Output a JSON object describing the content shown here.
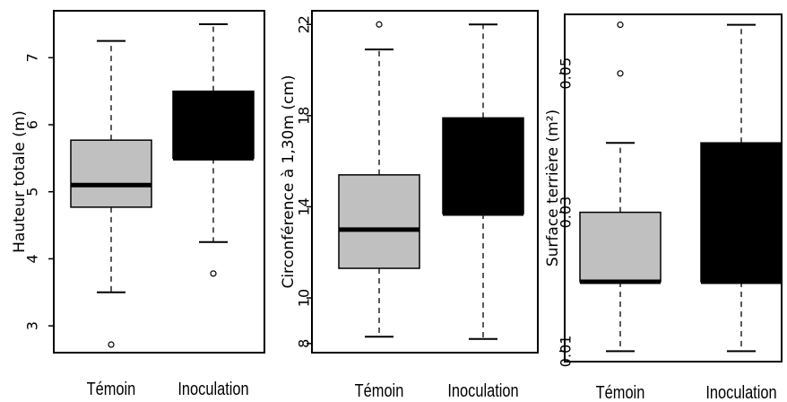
{
  "chart_data": [
    {
      "type": "boxplot",
      "ylabel": "Hauteur totale (m)",
      "yticks": [
        3,
        4,
        5,
        6,
        7
      ],
      "ylim": [
        2.6,
        7.7
      ],
      "categories": [
        "Témoin",
        "Inoculation"
      ],
      "boxes": [
        {
          "category": "Témoin",
          "fill": "#c0c0c0",
          "whisker_low": 3.5,
          "q1": 4.77,
          "median": 5.1,
          "q3": 5.77,
          "whisker_high": 7.25,
          "outliers": [
            2.72
          ]
        },
        {
          "category": "Inoculation",
          "fill": "#000000",
          "whisker_low": 4.25,
          "q1": 5.5,
          "median": 5.5,
          "q3": 6.5,
          "whisker_high": 7.5,
          "outliers": [
            3.78
          ]
        }
      ]
    },
    {
      "type": "boxplot",
      "ylabel": "Circonférence à 1,30m (cm)",
      "yticks": [
        8,
        10,
        14,
        18,
        22
      ],
      "ylim": [
        7.6,
        22.6
      ],
      "categories": [
        "Témoin",
        "Inoculation"
      ],
      "boxes": [
        {
          "category": "Témoin",
          "fill": "#c0c0c0",
          "whisker_low": 8.3,
          "q1": 11.3,
          "median": 13.0,
          "q3": 15.4,
          "whisker_high": 20.9,
          "outliers": [
            22.0
          ]
        },
        {
          "category": "Inoculation",
          "fill": "#000000",
          "whisker_low": 8.2,
          "q1": 13.7,
          "median": 13.7,
          "q3": 17.9,
          "whisker_high": 22.0,
          "outliers": []
        }
      ]
    },
    {
      "type": "boxplot",
      "ylabel": "Surface terrière (m²)",
      "yticks": [
        0.01,
        0.03,
        0.05
      ],
      "ylim": [
        0.0085,
        0.0585
      ],
      "categories": [
        "Témoin",
        "Inoculation"
      ],
      "boxes": [
        {
          "category": "Témoin",
          "fill": "#c0c0c0",
          "whisker_low": 0.01,
          "q1": 0.02,
          "median": 0.02,
          "q3": 0.03,
          "whisker_high": 0.04,
          "outliers": [
            0.057,
            0.05
          ]
        },
        {
          "category": "Inoculation",
          "fill": "#000000",
          "whisker_low": 0.01,
          "q1": 0.02,
          "median": 0.02,
          "q3": 0.04,
          "whisker_high": 0.057,
          "outliers": []
        }
      ]
    }
  ]
}
